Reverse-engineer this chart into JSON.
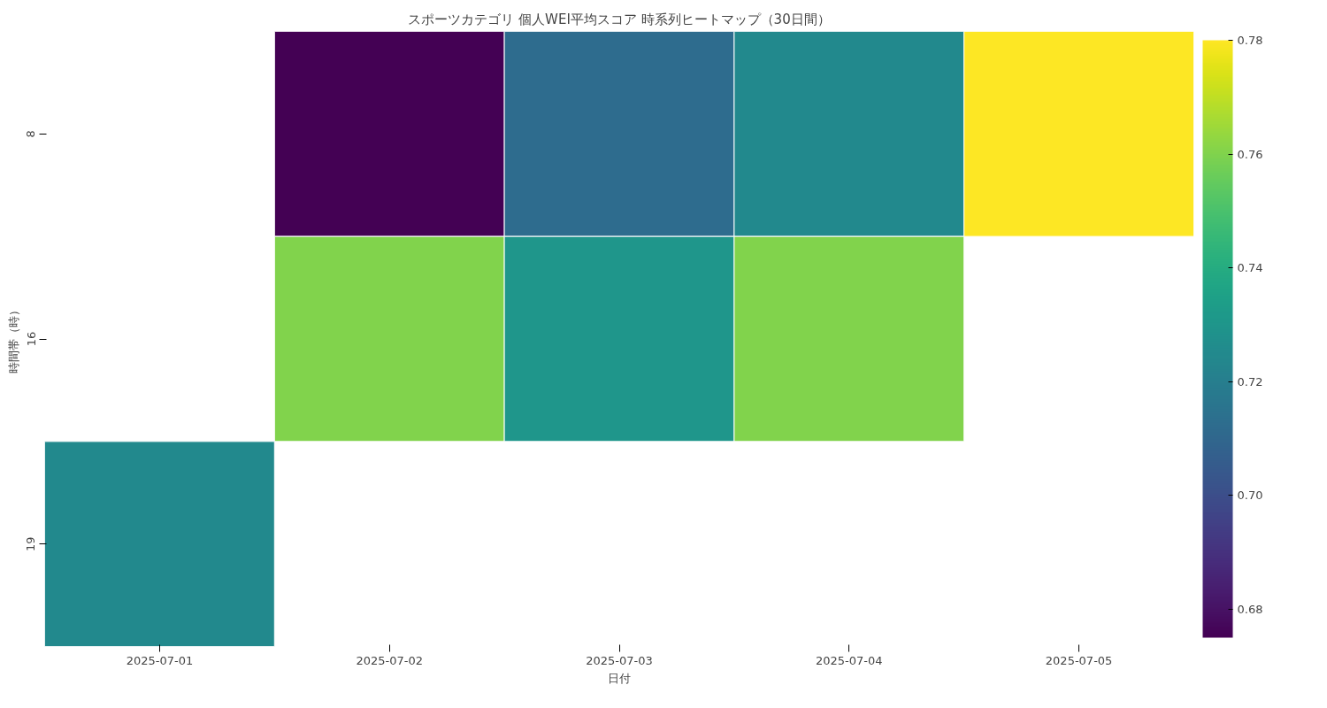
{
  "chart_data": {
    "type": "heatmap",
    "title": "スポーツカテゴリ 個人WEI平均スコア 時系列ヒートマップ（30日間）",
    "xlabel": "日付",
    "ylabel": "時間帯（時）",
    "categories": [
      "2025-07-01",
      "2025-07-02",
      "2025-07-03",
      "2025-07-04",
      "2025-07-05"
    ],
    "y_categories": [
      "8",
      "16",
      "19"
    ],
    "cells": [
      [
        null,
        0.675,
        0.712,
        0.725,
        0.78
      ],
      [
        null,
        0.76,
        0.73,
        0.76,
        null
      ],
      [
        0.725,
        null,
        null,
        null,
        null
      ]
    ],
    "clim": [
      0.675,
      0.78
    ],
    "cticks": [
      0.68,
      {
        "value": 0.7,
        "label": "0.70"
      },
      0.72,
      0.74,
      0.76,
      0.78
    ]
  }
}
